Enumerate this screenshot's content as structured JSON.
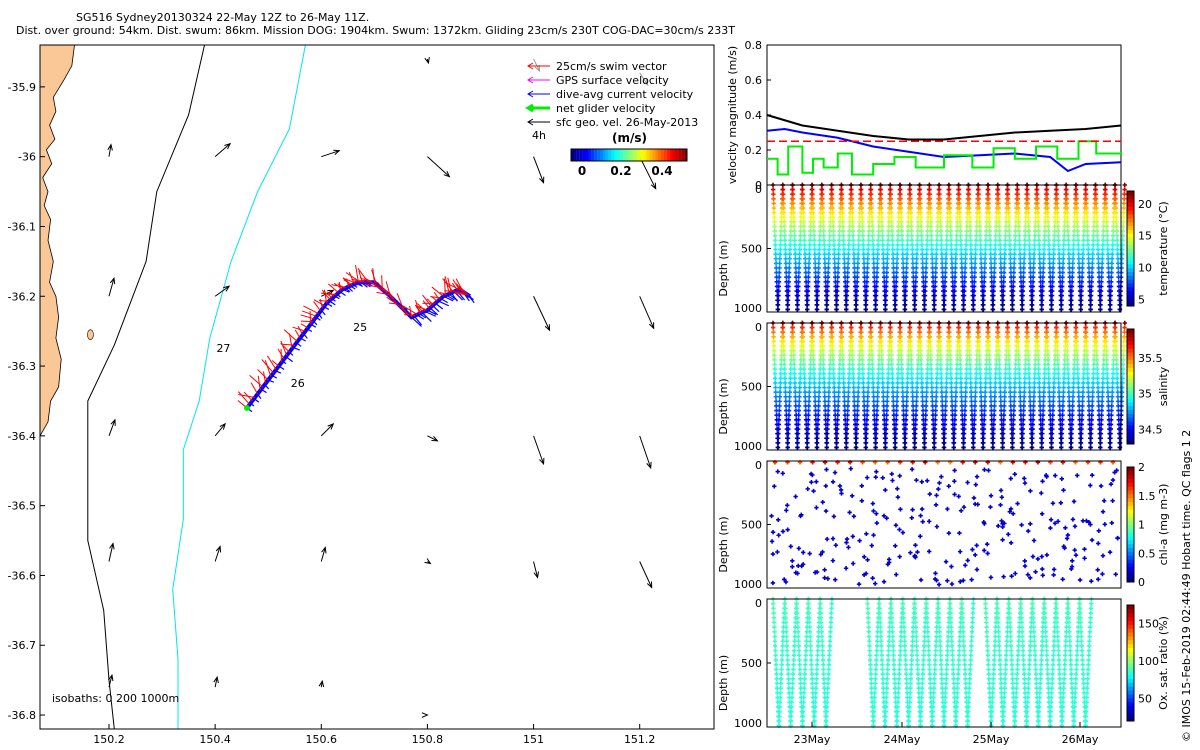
{
  "header": {
    "line1": "SG516 Sydney20130324 22-May 12Z to 26-May 11Z.",
    "line2": "Dist. over ground: 54km. Dist. swum: 86km. Mission DOG: 1904km. Swum: 1372km. Gliding 23cm/s 230T COG-DAC=30cm/s 233T"
  },
  "colors": {
    "land": "#f9c896",
    "shelf_isobath": "#00e5ee",
    "swim": "#ff0000",
    "gps": "#ff00ff",
    "dac": "#0000ff",
    "net": "#00ee00",
    "sfc": "#000000",
    "threshold": "#ff0000"
  },
  "map": {
    "xticks": [
      "150.2",
      "150.4",
      "150.6",
      "150.8",
      "151",
      "151.2"
    ],
    "yticks": [
      "-35.9",
      "-36",
      "-36.1",
      "-36.2",
      "-36.3",
      "-36.4",
      "-36.5",
      "-36.6",
      "-36.7",
      "-36.8"
    ],
    "xlim": [
      150.07,
      151.34
    ],
    "ylim": [
      -36.82,
      -35.84
    ],
    "legend": [
      {
        "key": "swim",
        "label": "25cm/s swim vector"
      },
      {
        "key": "gps",
        "label": "GPS surface velocity"
      },
      {
        "key": "dac",
        "label": "dive-avg current velocity"
      },
      {
        "key": "net",
        "label": "net glider velocity"
      },
      {
        "key": "sfc",
        "label": "sfc geo. vel. 26-May-2013"
      }
    ],
    "time_label": "4h",
    "colorbar": {
      "label": "(m/s)",
      "ticks": [
        "0",
        "0.2",
        "0.4"
      ]
    },
    "day_labels": [
      "25",
      "26",
      "27"
    ],
    "isobath_note": "isobaths: 0   200  1000m"
  },
  "chart_data": [
    {
      "type": "line",
      "ylabel": "velocity magnitude (m/s)",
      "ylim": [
        0,
        0.8
      ],
      "yticks": [
        "0",
        "0.2",
        "0.4",
        "0.6",
        "0.8"
      ],
      "threshold": 0.25,
      "series": [
        {
          "color": "#000000",
          "x": [
            0,
            0.05,
            0.1,
            0.2,
            0.3,
            0.4,
            0.5,
            0.6,
            0.7,
            0.8,
            0.9,
            1.0
          ],
          "values": [
            0.4,
            0.37,
            0.34,
            0.31,
            0.28,
            0.26,
            0.26,
            0.28,
            0.3,
            0.31,
            0.32,
            0.34
          ]
        },
        {
          "color": "#0000ff",
          "x": [
            0,
            0.05,
            0.1,
            0.2,
            0.3,
            0.4,
            0.5,
            0.6,
            0.7,
            0.8,
            0.85,
            0.9,
            1.0
          ],
          "values": [
            0.31,
            0.32,
            0.3,
            0.27,
            0.22,
            0.19,
            0.16,
            0.17,
            0.18,
            0.16,
            0.08,
            0.12,
            0.13
          ]
        },
        {
          "color": "#00ee00",
          "step": true,
          "x": [
            0,
            0.03,
            0.06,
            0.1,
            0.13,
            0.16,
            0.2,
            0.24,
            0.3,
            0.36,
            0.42,
            0.5,
            0.58,
            0.64,
            0.7,
            0.76,
            0.82,
            0.88,
            0.93,
            1.0
          ],
          "values": [
            0.15,
            0.06,
            0.22,
            0.07,
            0.15,
            0.1,
            0.18,
            0.06,
            0.12,
            0.16,
            0.1,
            0.17,
            0.1,
            0.21,
            0.15,
            0.22,
            0.15,
            0.25,
            0.18,
            0.19
          ]
        }
      ]
    },
    {
      "type": "scatter",
      "ylabel": "Depth (m)",
      "clabel": "temperature (°C)",
      "ylim": [
        1000,
        0
      ],
      "yticks": [
        "0",
        "500",
        "1000"
      ],
      "cticks": [
        "5",
        "10",
        "15",
        "20"
      ],
      "crange": [
        4,
        22
      ],
      "profile": "temperature",
      "dives": 36,
      "maxdepth": 1000
    },
    {
      "type": "scatter",
      "ylabel": "Depth (m)",
      "clabel": "salinity",
      "ylim": [
        1000,
        0
      ],
      "yticks": [
        "0",
        "500",
        "1000"
      ],
      "cticks": [
        "34.5",
        "35",
        "35.5"
      ],
      "crange": [
        34.3,
        35.9
      ],
      "profile": "salinity",
      "dives": 36,
      "maxdepth": 1000
    },
    {
      "type": "scatter",
      "ylabel": "Depth (m)",
      "clabel": "chl-a (mg m-3)",
      "ylim": [
        1000,
        0
      ],
      "yticks": [
        "0",
        "500",
        "1000"
      ],
      "cticks": [
        "0",
        "0.5",
        "1",
        "1.5",
        "2"
      ],
      "crange": [
        0,
        2
      ],
      "profile": "chl"
    },
    {
      "type": "scatter",
      "ylabel": "Depth (m)",
      "clabel": "Ox. sat. ratio (%)",
      "ylim": [
        1000,
        0
      ],
      "yticks": [
        "0",
        "500",
        "1000"
      ],
      "cticks": [
        "50",
        "100",
        "150"
      ],
      "crange": [
        20,
        175
      ],
      "profile": "oxygen"
    }
  ],
  "time_axis": {
    "ticks": [
      "23May",
      "24May",
      "25May",
      "26May"
    ]
  },
  "side_note": "© IMOS 15-Feb-2019 02:44:49 Hobart time. QC flags 1  2"
}
